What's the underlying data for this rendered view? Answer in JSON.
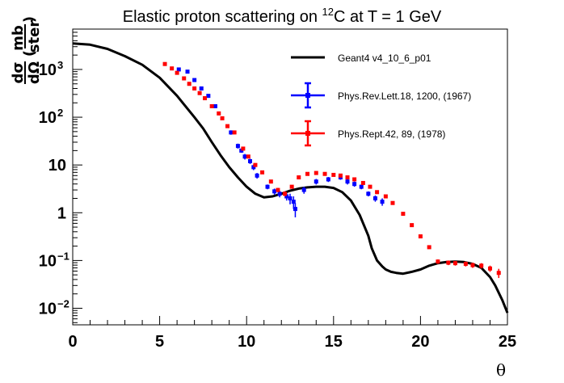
{
  "chart_data": {
    "type": "line",
    "title": "Elastic proton scattering on ¹²C at T = 1 GeV",
    "title_parts": {
      "pre": "Elastic proton scattering on ",
      "sup": "12",
      "post": "C at T = 1 GeV"
    },
    "xlabel": "θ",
    "ylabel": {
      "num_symbol": "dσ",
      "den_symbol": "dΩ",
      "num_unit": "mb",
      "den_unit": "ster",
      "lparen": "(",
      "rparen": ")"
    },
    "xlim": [
      0,
      25
    ],
    "ylim": [
      0.0045,
      7000
    ],
    "yscale": "log",
    "grid": false,
    "legend_position": "top-right",
    "x_ticks": [
      {
        "value": 0,
        "label": "0"
      },
      {
        "value": 5,
        "label": "5"
      },
      {
        "value": 10,
        "label": "10"
      },
      {
        "value": 15,
        "label": "15"
      },
      {
        "value": 20,
        "label": "20"
      },
      {
        "value": 25,
        "label": "25"
      }
    ],
    "y_ticks": [
      {
        "value": 0.01,
        "base": "10",
        "exp": "−2"
      },
      {
        "value": 0.1,
        "base": "10",
        "exp": "−1"
      },
      {
        "value": 1,
        "base": "1",
        "exp": ""
      },
      {
        "value": 10,
        "base": "10",
        "exp": ""
      },
      {
        "value": 100,
        "base": "10",
        "exp": "2"
      },
      {
        "value": 1000,
        "base": "10",
        "exp": "3"
      }
    ],
    "series": [
      {
        "name": "Geant4 v4_10_6_p01",
        "kind": "line",
        "color": "#000000",
        "x": [
          0,
          1,
          2,
          3,
          4,
          5,
          6,
          7,
          7.5,
          8,
          8.5,
          9,
          9.5,
          10,
          10.5,
          11,
          11.5,
          12,
          12.5,
          13,
          13.5,
          14,
          14.5,
          15,
          15.5,
          16,
          16.5,
          17,
          17.2,
          17.5,
          17.8,
          18,
          18.3,
          18.6,
          19,
          19.5,
          20,
          20.5,
          21,
          21.5,
          22,
          22.5,
          23,
          23.5,
          24,
          24.3,
          24.7,
          25
        ],
        "y": [
          3500,
          3300,
          2700,
          1900,
          1250,
          670,
          280,
          100,
          58,
          30,
          16,
          9,
          5.5,
          3.5,
          2.5,
          2.1,
          2.2,
          2.5,
          2.9,
          3.2,
          3.4,
          3.5,
          3.5,
          3.3,
          2.7,
          1.8,
          0.9,
          0.33,
          0.18,
          0.1,
          0.075,
          0.065,
          0.058,
          0.055,
          0.053,
          0.058,
          0.065,
          0.078,
          0.088,
          0.093,
          0.095,
          0.093,
          0.085,
          0.07,
          0.045,
          0.03,
          0.015,
          0.008
        ]
      },
      {
        "name": "Phys.Rev.Lett.18, 1200, (1967)",
        "kind": "errorbar",
        "color": "#0000ff",
        "x": [
          6.1,
          6.6,
          7.0,
          7.4,
          7.8,
          8.2,
          9.1,
          9.5,
          9.7,
          9.9,
          10.2,
          10.4,
          10.6,
          11.2,
          11.6,
          11.9,
          12.3,
          12.5,
          12.7,
          12.8,
          13.3,
          14.0,
          14.7,
          15.4,
          15.8,
          16.2,
          16.6,
          17.0,
          17.4,
          17.8
        ],
        "y": [
          1000,
          900,
          600,
          400,
          280,
          170,
          48,
          25,
          20,
          15,
          12,
          9,
          6,
          3.5,
          2.8,
          2.5,
          2.2,
          2.0,
          1.7,
          1.2,
          3.0,
          4.5,
          5.0,
          5.5,
          4.5,
          4.0,
          3.5,
          2.5,
          2.0,
          1.7
        ],
        "err": [
          80,
          70,
          50,
          30,
          25,
          15,
          5,
          3,
          2,
          2,
          1.5,
          1.2,
          0.8,
          0.4,
          0.4,
          0.4,
          0.4,
          0.5,
          0.5,
          0.4,
          0.5,
          0.6,
          0.6,
          0.6,
          0.6,
          0.5,
          0.4,
          0.3,
          0.3,
          0.3
        ]
      },
      {
        "name": "Phys.Rept.42, 89, (1978)",
        "kind": "errorbar",
        "color": "#ff0000",
        "x": [
          5.3,
          5.7,
          6.0,
          6.4,
          6.7,
          7.0,
          7.3,
          7.6,
          8.0,
          8.4,
          8.6,
          8.9,
          9.3,
          9.8,
          10.1,
          10.5,
          10.9,
          11.4,
          11.8,
          12.2,
          12.6,
          13.0,
          13.5,
          14.0,
          14.5,
          15.0,
          15.4,
          15.8,
          16.2,
          16.7,
          17.1,
          17.5,
          18.0,
          18.4,
          19.0,
          19.5,
          20.0,
          20.5,
          21.0,
          21.6,
          22.0,
          22.6,
          23.0,
          23.5,
          24.0,
          24.5
        ],
        "y": [
          1300,
          1050,
          850,
          650,
          500,
          400,
          320,
          250,
          170,
          120,
          95,
          65,
          48,
          22,
          15,
          10,
          7,
          4.5,
          3,
          2.5,
          3.5,
          5.5,
          6.5,
          6.8,
          6.5,
          6.2,
          6.0,
          5.5,
          5.0,
          4.2,
          3.5,
          2.7,
          2.2,
          1.6,
          0.95,
          0.55,
          0.32,
          0.19,
          0.095,
          0.09,
          0.088,
          0.085,
          0.08,
          0.078,
          0.068,
          0.055
        ],
        "err": [
          80,
          60,
          50,
          40,
          30,
          25,
          20,
          15,
          10,
          8,
          6,
          5,
          4,
          2,
          1.2,
          0.8,
          0.5,
          0.4,
          0.3,
          0.3,
          0.3,
          0.4,
          0.4,
          0.4,
          0.4,
          0.4,
          0.4,
          0.3,
          0.3,
          0.3,
          0.2,
          0.2,
          0.15,
          0.1,
          0.07,
          0.04,
          0.025,
          0.015,
          0.01,
          0.01,
          0.01,
          0.01,
          0.01,
          0.01,
          0.01,
          0.012
        ]
      }
    ]
  }
}
